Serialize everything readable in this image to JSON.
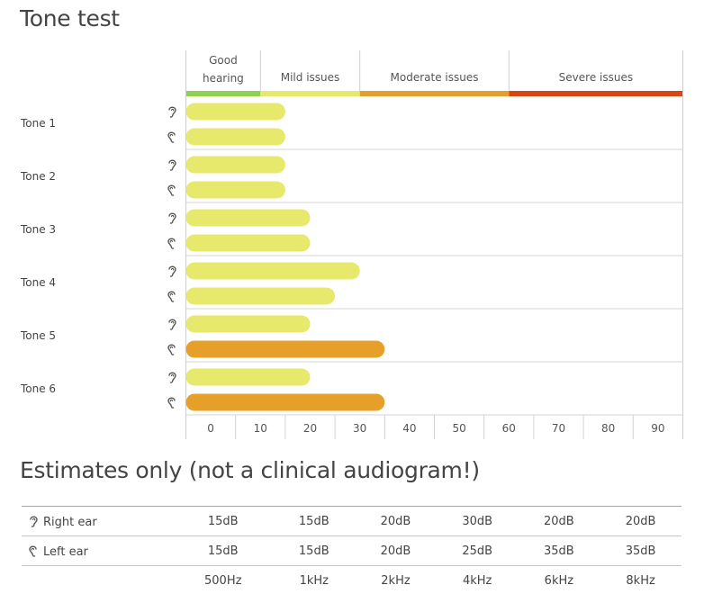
{
  "page": {
    "title": "Tone test",
    "subtitle": "Estimates only (not a clinical audiogram!)"
  },
  "chart_data": {
    "type": "bar",
    "orientation": "horizontal",
    "categories": [
      "Tone 1",
      "Tone 2",
      "Tone 3",
      "Tone 4",
      "Tone 5",
      "Tone 6"
    ],
    "series": [
      {
        "ear": "right",
        "icon": "right-ear-icon",
        "values": [
          15,
          15,
          20,
          30,
          20,
          20
        ]
      },
      {
        "ear": "left",
        "icon": "left-ear-icon",
        "values": [
          15,
          15,
          20,
          25,
          35,
          35
        ]
      }
    ],
    "xticks": [
      0,
      10,
      20,
      30,
      40,
      50,
      60,
      70,
      80,
      90
    ],
    "xlim": [
      -5,
      95
    ],
    "bands": [
      {
        "label_lines": [
          "Good",
          "hearing"
        ],
        "from": -5,
        "to": 10,
        "color": "#92d050"
      },
      {
        "label_lines": [
          "Mild issues"
        ],
        "from": 10,
        "to": 30,
        "color": "#e7e96c"
      },
      {
        "label_lines": [
          "Moderate issues"
        ],
        "from": 30,
        "to": 60,
        "color": "#e6a02a"
      },
      {
        "label_lines": [
          "Severe issues"
        ],
        "from": 60,
        "to": 95,
        "color": "#d9450f"
      }
    ],
    "grid": true
  },
  "estimates": {
    "rows": [
      {
        "label": "Right ear",
        "icon": "right-ear-icon",
        "values": [
          "15dB",
          "15dB",
          "20dB",
          "30dB",
          "20dB",
          "20dB"
        ]
      },
      {
        "label": "Left ear",
        "icon": "left-ear-icon",
        "values": [
          "15dB",
          "15dB",
          "20dB",
          "25dB",
          "35dB",
          "35dB"
        ]
      }
    ],
    "frequencies": [
      "500Hz",
      "1kHz",
      "2kHz",
      "4kHz",
      "6kHz",
      "8kHz"
    ]
  }
}
